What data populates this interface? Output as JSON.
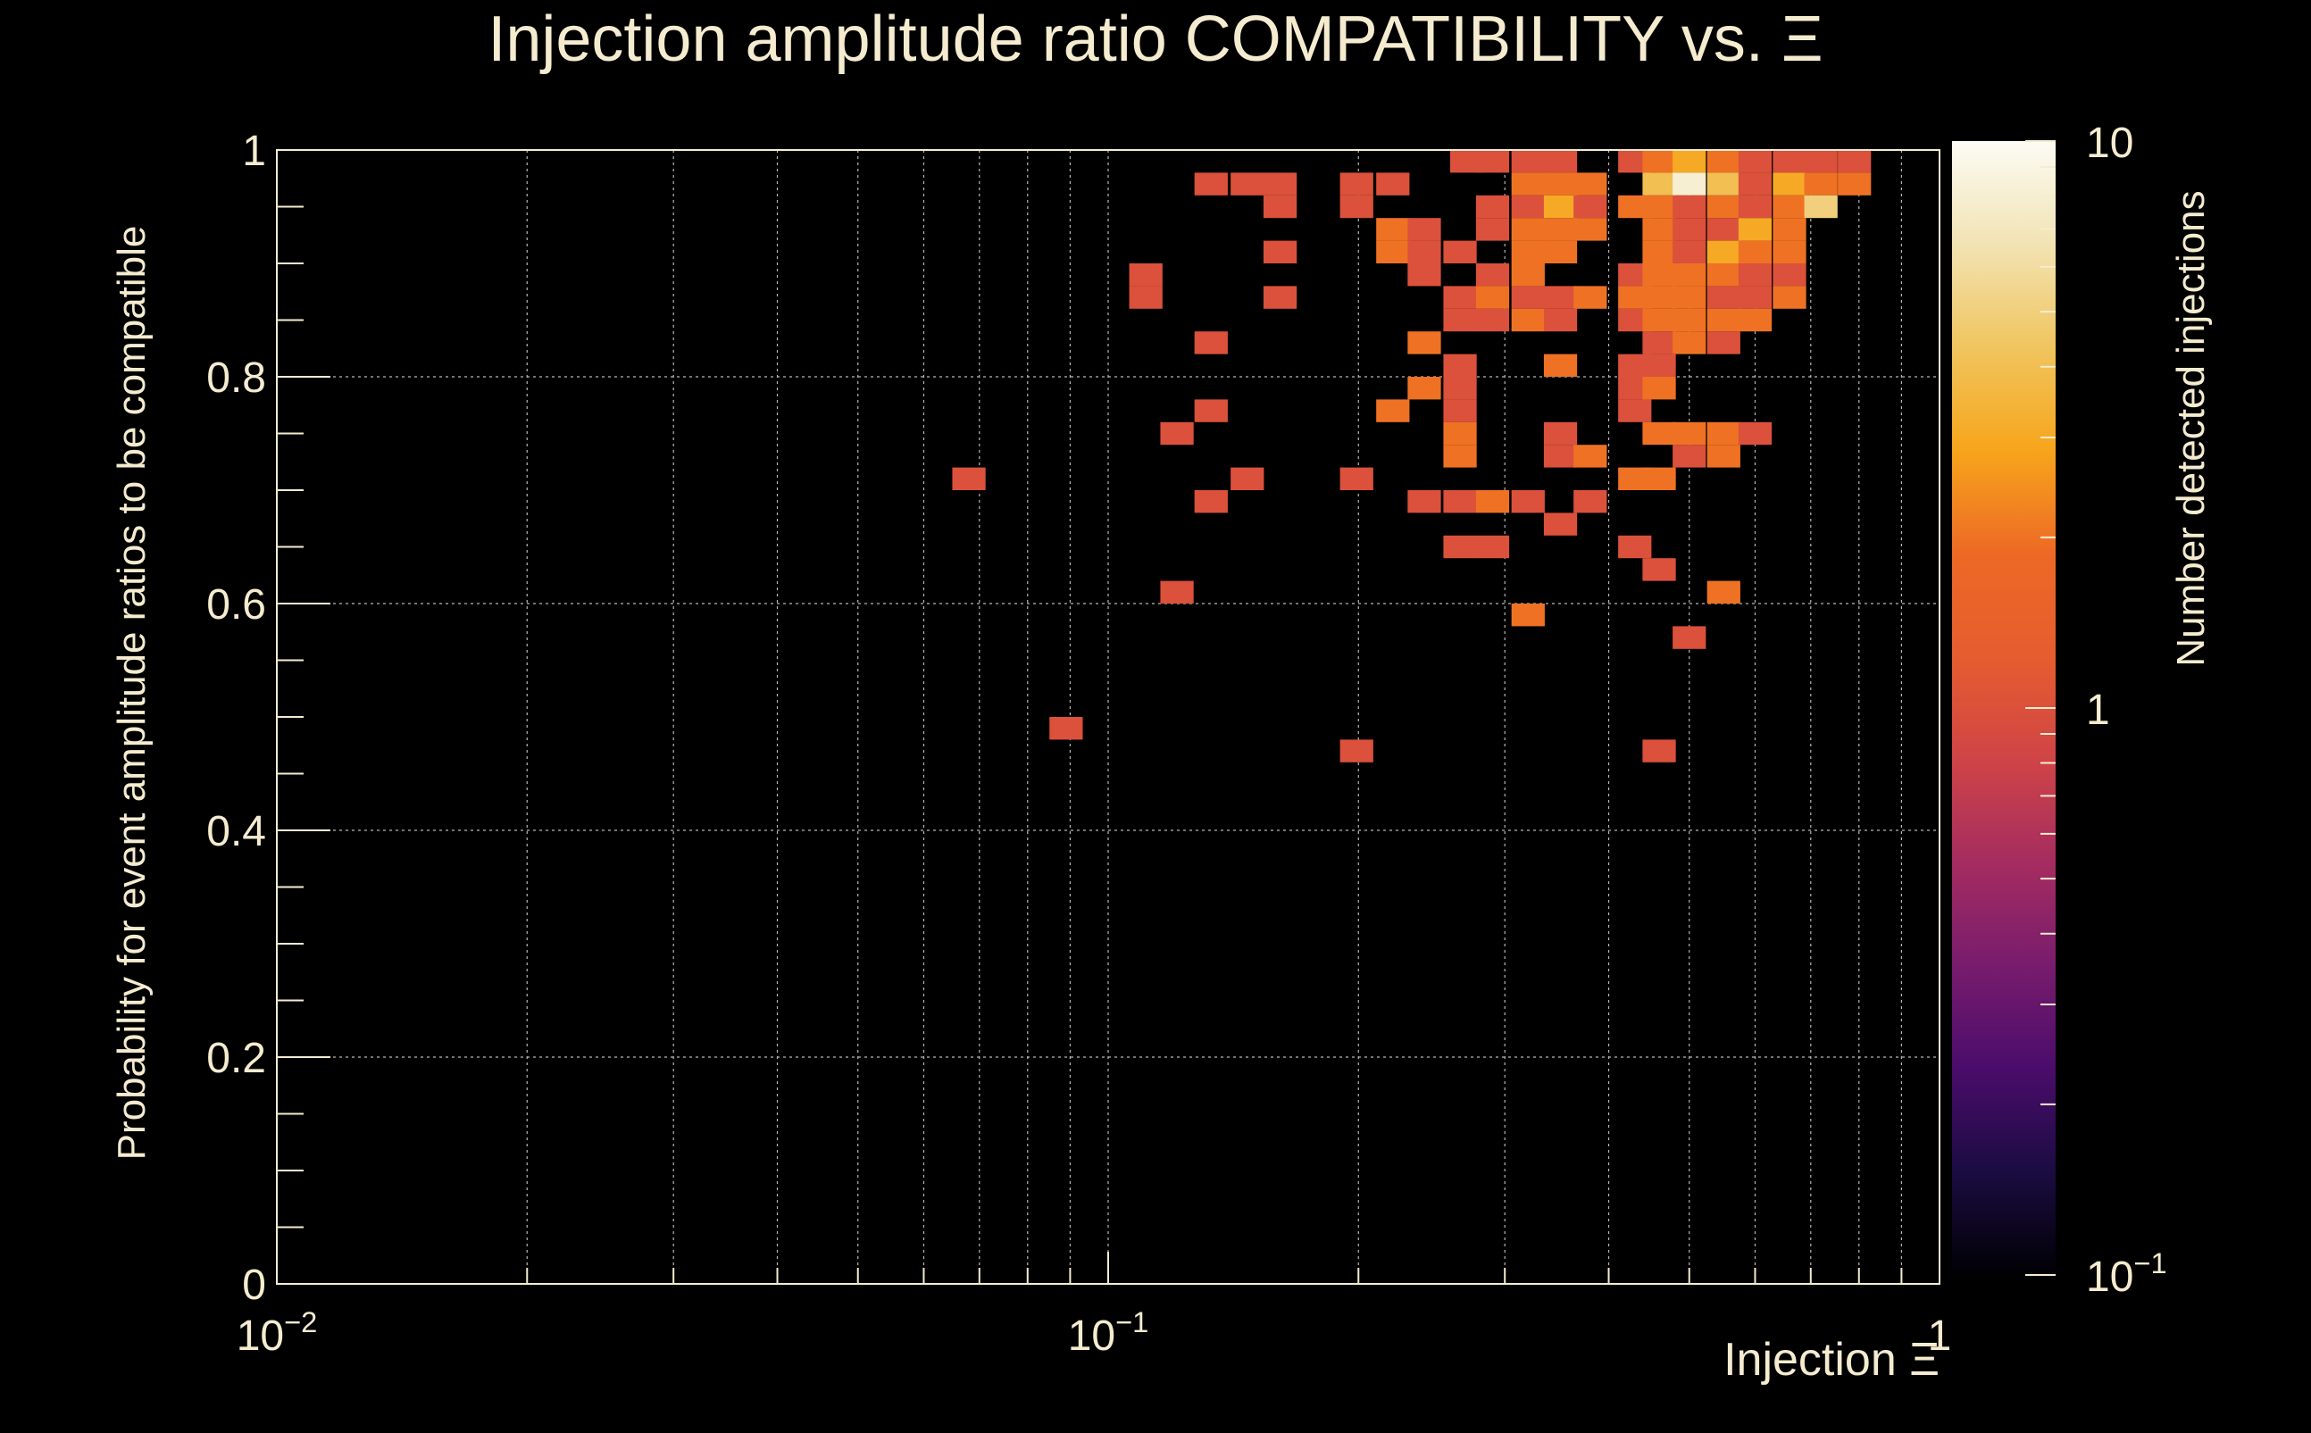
{
  "chart_data": {
    "type": "heatmap",
    "title": "Injection amplitude ratio COMPATIBILITY vs.  Ξ",
    "xlabel": "Injection Ξ",
    "ylabel": "Probability for event amplitude ratios to be compatible",
    "zlabel": "Number detected injections",
    "x_scale": "log",
    "xlim": [
      0.01,
      1
    ],
    "ylim": [
      0,
      1
    ],
    "z_scale": "log",
    "zlim": [
      0.1,
      10
    ],
    "grid": true,
    "x_ticks": [
      {
        "value": 0.01,
        "base": "10",
        "exp": "−2"
      },
      {
        "value": 0.1,
        "base": "10",
        "exp": "−1"
      },
      {
        "value": 1,
        "base": "1",
        "exp": ""
      }
    ],
    "y_ticks": [
      {
        "value": 0,
        "label": "0"
      },
      {
        "value": 0.2,
        "label": "0.2"
      },
      {
        "value": 0.4,
        "label": "0.4"
      },
      {
        "value": 0.6,
        "label": "0.6"
      },
      {
        "value": 0.8,
        "label": "0.8"
      },
      {
        "value": 1,
        "label": "1"
      }
    ],
    "z_ticks": [
      {
        "value": 0.1,
        "base": "10",
        "exp": "−1"
      },
      {
        "value": 1,
        "base": "1",
        "exp": ""
      },
      {
        "value": 10,
        "base": "10",
        "exp": ""
      }
    ],
    "colors": {
      "background": "#000000",
      "text": "#f5ecd0",
      "grid": "#b8b8b8",
      "colormap": [
        "#000004",
        "#1b0c41",
        "#4a0c6b",
        "#781c6d",
        "#a52c60",
        "#cf4446",
        "#e65d2f",
        "#ed6925",
        "#f7a51c",
        "#f0c55f",
        "#f2e3b4",
        "#fcfcf4"
      ]
    },
    "cells": [
      {
        "x": 0.27,
        "y": 0.99,
        "z": 1
      },
      {
        "x": 0.29,
        "y": 0.99,
        "z": 1
      },
      {
        "x": 0.32,
        "y": 0.99,
        "z": 1
      },
      {
        "x": 0.35,
        "y": 0.99,
        "z": 1
      },
      {
        "x": 0.43,
        "y": 0.99,
        "z": 1
      },
      {
        "x": 0.46,
        "y": 0.99,
        "z": 2
      },
      {
        "x": 0.5,
        "y": 0.99,
        "z": 3
      },
      {
        "x": 0.55,
        "y": 0.99,
        "z": 2
      },
      {
        "x": 0.6,
        "y": 0.99,
        "z": 1
      },
      {
        "x": 0.66,
        "y": 0.99,
        "z": 1
      },
      {
        "x": 0.72,
        "y": 0.99,
        "z": 1
      },
      {
        "x": 0.79,
        "y": 0.99,
        "z": 1
      },
      {
        "x": 0.133,
        "y": 0.97,
        "z": 1
      },
      {
        "x": 0.147,
        "y": 0.97,
        "z": 1
      },
      {
        "x": 0.161,
        "y": 0.97,
        "z": 1
      },
      {
        "x": 0.199,
        "y": 0.97,
        "z": 1
      },
      {
        "x": 0.22,
        "y": 0.97,
        "z": 1
      },
      {
        "x": 0.32,
        "y": 0.97,
        "z": 2
      },
      {
        "x": 0.35,
        "y": 0.97,
        "z": 2
      },
      {
        "x": 0.38,
        "y": 0.97,
        "z": 2
      },
      {
        "x": 0.46,
        "y": 0.97,
        "z": 4
      },
      {
        "x": 0.5,
        "y": 0.97,
        "z": 8
      },
      {
        "x": 0.55,
        "y": 0.97,
        "z": 4
      },
      {
        "x": 0.6,
        "y": 0.97,
        "z": 1
      },
      {
        "x": 0.66,
        "y": 0.97,
        "z": 3
      },
      {
        "x": 0.72,
        "y": 0.97,
        "z": 2
      },
      {
        "x": 0.79,
        "y": 0.97,
        "z": 2
      },
      {
        "x": 0.161,
        "y": 0.95,
        "z": 1
      },
      {
        "x": 0.199,
        "y": 0.95,
        "z": 1
      },
      {
        "x": 0.29,
        "y": 0.95,
        "z": 1
      },
      {
        "x": 0.32,
        "y": 0.95,
        "z": 1
      },
      {
        "x": 0.35,
        "y": 0.95,
        "z": 3
      },
      {
        "x": 0.38,
        "y": 0.95,
        "z": 1
      },
      {
        "x": 0.43,
        "y": 0.95,
        "z": 2
      },
      {
        "x": 0.46,
        "y": 0.95,
        "z": 2
      },
      {
        "x": 0.5,
        "y": 0.95,
        "z": 1
      },
      {
        "x": 0.55,
        "y": 0.95,
        "z": 2
      },
      {
        "x": 0.6,
        "y": 0.95,
        "z": 1
      },
      {
        "x": 0.66,
        "y": 0.95,
        "z": 2
      },
      {
        "x": 0.72,
        "y": 0.95,
        "z": 5
      },
      {
        "x": 0.22,
        "y": 0.93,
        "z": 2
      },
      {
        "x": 0.24,
        "y": 0.93,
        "z": 1
      },
      {
        "x": 0.29,
        "y": 0.93,
        "z": 1
      },
      {
        "x": 0.32,
        "y": 0.93,
        "z": 2
      },
      {
        "x": 0.35,
        "y": 0.93,
        "z": 2
      },
      {
        "x": 0.38,
        "y": 0.93,
        "z": 2
      },
      {
        "x": 0.46,
        "y": 0.93,
        "z": 2
      },
      {
        "x": 0.5,
        "y": 0.93,
        "z": 1
      },
      {
        "x": 0.55,
        "y": 0.93,
        "z": 1
      },
      {
        "x": 0.6,
        "y": 0.93,
        "z": 3
      },
      {
        "x": 0.66,
        "y": 0.93,
        "z": 2
      },
      {
        "x": 0.161,
        "y": 0.91,
        "z": 1
      },
      {
        "x": 0.22,
        "y": 0.91,
        "z": 2
      },
      {
        "x": 0.24,
        "y": 0.91,
        "z": 1
      },
      {
        "x": 0.265,
        "y": 0.91,
        "z": 1
      },
      {
        "x": 0.32,
        "y": 0.91,
        "z": 2
      },
      {
        "x": 0.35,
        "y": 0.91,
        "z": 2
      },
      {
        "x": 0.46,
        "y": 0.91,
        "z": 2
      },
      {
        "x": 0.5,
        "y": 0.91,
        "z": 1
      },
      {
        "x": 0.55,
        "y": 0.91,
        "z": 3
      },
      {
        "x": 0.6,
        "y": 0.91,
        "z": 2
      },
      {
        "x": 0.66,
        "y": 0.91,
        "z": 2
      },
      {
        "x": 0.111,
        "y": 0.89,
        "z": 1
      },
      {
        "x": 0.24,
        "y": 0.89,
        "z": 1
      },
      {
        "x": 0.29,
        "y": 0.89,
        "z": 1
      },
      {
        "x": 0.32,
        "y": 0.89,
        "z": 2
      },
      {
        "x": 0.43,
        "y": 0.89,
        "z": 1
      },
      {
        "x": 0.46,
        "y": 0.89,
        "z": 2
      },
      {
        "x": 0.5,
        "y": 0.89,
        "z": 2
      },
      {
        "x": 0.55,
        "y": 0.89,
        "z": 2
      },
      {
        "x": 0.6,
        "y": 0.89,
        "z": 1
      },
      {
        "x": 0.66,
        "y": 0.89,
        "z": 1
      },
      {
        "x": 0.111,
        "y": 0.87,
        "z": 1
      },
      {
        "x": 0.161,
        "y": 0.87,
        "z": 1
      },
      {
        "x": 0.265,
        "y": 0.87,
        "z": 1
      },
      {
        "x": 0.29,
        "y": 0.87,
        "z": 2
      },
      {
        "x": 0.32,
        "y": 0.87,
        "z": 1
      },
      {
        "x": 0.35,
        "y": 0.87,
        "z": 1
      },
      {
        "x": 0.38,
        "y": 0.87,
        "z": 2
      },
      {
        "x": 0.43,
        "y": 0.87,
        "z": 2
      },
      {
        "x": 0.46,
        "y": 0.87,
        "z": 2
      },
      {
        "x": 0.5,
        "y": 0.87,
        "z": 2
      },
      {
        "x": 0.55,
        "y": 0.87,
        "z": 1
      },
      {
        "x": 0.6,
        "y": 0.87,
        "z": 1
      },
      {
        "x": 0.66,
        "y": 0.87,
        "z": 2
      },
      {
        "x": 0.265,
        "y": 0.85,
        "z": 1
      },
      {
        "x": 0.29,
        "y": 0.85,
        "z": 1
      },
      {
        "x": 0.32,
        "y": 0.85,
        "z": 2
      },
      {
        "x": 0.35,
        "y": 0.85,
        "z": 1
      },
      {
        "x": 0.43,
        "y": 0.85,
        "z": 1
      },
      {
        "x": 0.46,
        "y": 0.85,
        "z": 2
      },
      {
        "x": 0.5,
        "y": 0.85,
        "z": 2
      },
      {
        "x": 0.55,
        "y": 0.85,
        "z": 2
      },
      {
        "x": 0.6,
        "y": 0.85,
        "z": 2
      },
      {
        "x": 0.133,
        "y": 0.83,
        "z": 1
      },
      {
        "x": 0.24,
        "y": 0.83,
        "z": 2
      },
      {
        "x": 0.46,
        "y": 0.83,
        "z": 1
      },
      {
        "x": 0.5,
        "y": 0.83,
        "z": 2
      },
      {
        "x": 0.55,
        "y": 0.83,
        "z": 1
      },
      {
        "x": 0.265,
        "y": 0.81,
        "z": 1
      },
      {
        "x": 0.35,
        "y": 0.81,
        "z": 2
      },
      {
        "x": 0.43,
        "y": 0.81,
        "z": 1
      },
      {
        "x": 0.46,
        "y": 0.81,
        "z": 1
      },
      {
        "x": 0.24,
        "y": 0.79,
        "z": 2
      },
      {
        "x": 0.265,
        "y": 0.79,
        "z": 1
      },
      {
        "x": 0.43,
        "y": 0.79,
        "z": 1
      },
      {
        "x": 0.46,
        "y": 0.79,
        "z": 2
      },
      {
        "x": 0.133,
        "y": 0.77,
        "z": 1
      },
      {
        "x": 0.22,
        "y": 0.77,
        "z": 2
      },
      {
        "x": 0.265,
        "y": 0.77,
        "z": 1
      },
      {
        "x": 0.43,
        "y": 0.77,
        "z": 1
      },
      {
        "x": 0.121,
        "y": 0.75,
        "z": 1
      },
      {
        "x": 0.265,
        "y": 0.75,
        "z": 2
      },
      {
        "x": 0.35,
        "y": 0.75,
        "z": 1
      },
      {
        "x": 0.46,
        "y": 0.75,
        "z": 2
      },
      {
        "x": 0.5,
        "y": 0.75,
        "z": 2
      },
      {
        "x": 0.55,
        "y": 0.75,
        "z": 2
      },
      {
        "x": 0.6,
        "y": 0.75,
        "z": 1
      },
      {
        "x": 0.265,
        "y": 0.73,
        "z": 2
      },
      {
        "x": 0.35,
        "y": 0.73,
        "z": 1
      },
      {
        "x": 0.38,
        "y": 0.73,
        "z": 2
      },
      {
        "x": 0.5,
        "y": 0.73,
        "z": 1
      },
      {
        "x": 0.55,
        "y": 0.73,
        "z": 2
      },
      {
        "x": 0.068,
        "y": 0.71,
        "z": 1
      },
      {
        "x": 0.147,
        "y": 0.71,
        "z": 1
      },
      {
        "x": 0.199,
        "y": 0.71,
        "z": 1
      },
      {
        "x": 0.43,
        "y": 0.71,
        "z": 2
      },
      {
        "x": 0.46,
        "y": 0.71,
        "z": 2
      },
      {
        "x": 0.133,
        "y": 0.69,
        "z": 1
      },
      {
        "x": 0.24,
        "y": 0.69,
        "z": 1
      },
      {
        "x": 0.265,
        "y": 0.69,
        "z": 1
      },
      {
        "x": 0.29,
        "y": 0.69,
        "z": 2
      },
      {
        "x": 0.32,
        "y": 0.69,
        "z": 1
      },
      {
        "x": 0.38,
        "y": 0.69,
        "z": 1
      },
      {
        "x": 0.35,
        "y": 0.67,
        "z": 1
      },
      {
        "x": 0.265,
        "y": 0.65,
        "z": 1
      },
      {
        "x": 0.29,
        "y": 0.65,
        "z": 1
      },
      {
        "x": 0.43,
        "y": 0.65,
        "z": 1
      },
      {
        "x": 0.46,
        "y": 0.63,
        "z": 1
      },
      {
        "x": 0.121,
        "y": 0.61,
        "z": 1
      },
      {
        "x": 0.55,
        "y": 0.61,
        "z": 2
      },
      {
        "x": 0.32,
        "y": 0.59,
        "z": 2
      },
      {
        "x": 0.5,
        "y": 0.57,
        "z": 1
      },
      {
        "x": 0.089,
        "y": 0.49,
        "z": 1
      },
      {
        "x": 0.199,
        "y": 0.47,
        "z": 1
      },
      {
        "x": 0.46,
        "y": 0.47,
        "z": 1
      }
    ]
  }
}
